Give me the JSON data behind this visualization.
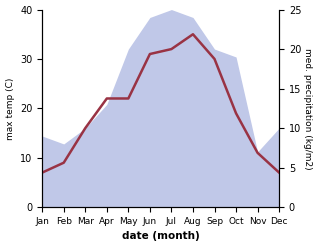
{
  "months": [
    "Jan",
    "Feb",
    "Mar",
    "Apr",
    "May",
    "Jun",
    "Jul",
    "Aug",
    "Sep",
    "Oct",
    "Nov",
    "Dec"
  ],
  "temperature": [
    7,
    9,
    16,
    22,
    22,
    31,
    32,
    35,
    30,
    19,
    11,
    7
  ],
  "precipitation": [
    9,
    8,
    10,
    13,
    20,
    24,
    25,
    24,
    20,
    19,
    7,
    10
  ],
  "temp_color": "#993344",
  "precip_fill_color": "#c0c8e8",
  "temp_ylim": [
    0,
    40
  ],
  "precip_ylim": [
    0,
    25
  ],
  "xlabel": "date (month)",
  "ylabel_left": "max temp (C)",
  "ylabel_right": "med. precipitation (kg/m2)",
  "figsize": [
    3.18,
    2.47
  ],
  "dpi": 100
}
